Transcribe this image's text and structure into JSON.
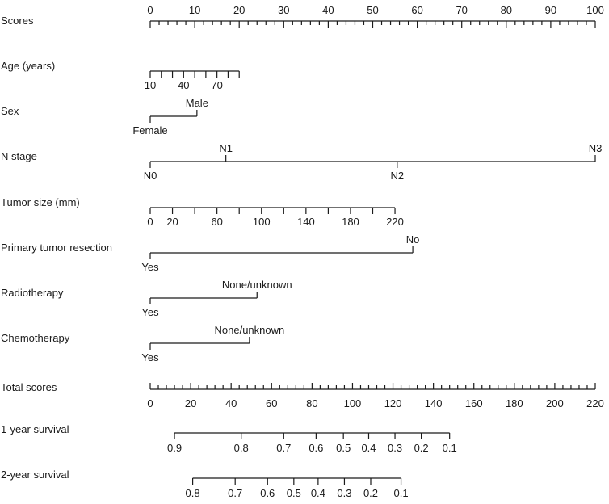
{
  "chart_data": {
    "type": "nomogram",
    "points_scale": {
      "label": "Scores",
      "min": 0,
      "max": 100,
      "labels": [
        0,
        10,
        20,
        30,
        40,
        50,
        60,
        70,
        80,
        90,
        100
      ],
      "minor_step": 2
    },
    "variables": [
      {
        "label": "Age (years)",
        "kind": "continuous",
        "ticks": [
          10,
          20,
          30,
          40,
          50,
          60,
          70,
          80,
          90
        ],
        "tick_points": [
          0,
          2.5,
          5,
          7.5,
          10,
          12.5,
          15,
          17.5,
          20
        ],
        "labels": [
          "10",
          "40",
          "70"
        ],
        "label_points": [
          0,
          7.5,
          15
        ]
      },
      {
        "label": "Sex",
        "kind": "categorical",
        "levels": [
          {
            "name": "Female",
            "points": 0,
            "pos": "below"
          },
          {
            "name": "Male",
            "points": 10.5,
            "pos": "above"
          }
        ]
      },
      {
        "label": "N stage",
        "kind": "categorical",
        "levels": [
          {
            "name": "N0",
            "points": 0,
            "pos": "below"
          },
          {
            "name": "N1",
            "points": 17,
            "pos": "above"
          },
          {
            "name": "N2",
            "points": 55.5,
            "pos": "below"
          },
          {
            "name": "N3",
            "points": 100,
            "pos": "above"
          }
        ]
      },
      {
        "label": "Tumor size (mm)",
        "kind": "continuous",
        "ticks": [
          0,
          20,
          40,
          60,
          80,
          100,
          120,
          140,
          160,
          180,
          200,
          220
        ],
        "tick_points": [
          0,
          5,
          10,
          15,
          20,
          25,
          30,
          35,
          40,
          45,
          50,
          55
        ],
        "labels": [
          "0",
          "20",
          "60",
          "100",
          "140",
          "180",
          "220"
        ],
        "label_points": [
          0,
          5,
          15,
          25,
          35,
          45,
          55
        ]
      },
      {
        "label": "Primary tumor resection",
        "kind": "categorical",
        "levels": [
          {
            "name": "Yes",
            "points": 0,
            "pos": "below"
          },
          {
            "name": "No",
            "points": 59,
            "pos": "above"
          }
        ]
      },
      {
        "label": "Radiotherapy",
        "kind": "categorical",
        "levels": [
          {
            "name": "Yes",
            "points": 0,
            "pos": "below"
          },
          {
            "name": "None/unknown",
            "points": 24,
            "pos": "above"
          }
        ]
      },
      {
        "label": "Chemotherapy",
        "kind": "categorical",
        "levels": [
          {
            "name": "Yes",
            "points": 0,
            "pos": "below"
          },
          {
            "name": "None/unknown",
            "points": 22.3,
            "pos": "above"
          }
        ]
      }
    ],
    "total_scale": {
      "label": "Total scores",
      "min": 0,
      "max": 220,
      "labels": [
        0,
        20,
        40,
        60,
        80,
        100,
        120,
        140,
        160,
        180,
        200,
        220
      ],
      "minor_step": 4
    },
    "survival_scales": [
      {
        "label": "1-year survival",
        "values": [
          "0.9",
          "0.8",
          "0.7",
          "0.6",
          "0.5",
          "0.4",
          "0.3",
          "0.2",
          "0.1"
        ],
        "total_points": [
          12,
          45,
          66,
          82,
          95.5,
          108,
          121,
          134,
          148
        ]
      },
      {
        "label": "2-year survival",
        "values": [
          "0.8",
          "0.7",
          "0.6",
          "0.5",
          "0.4",
          "0.3",
          "0.2",
          "0.1"
        ],
        "total_points": [
          21,
          42,
          58,
          71,
          83,
          96,
          109,
          124
        ]
      }
    ]
  }
}
